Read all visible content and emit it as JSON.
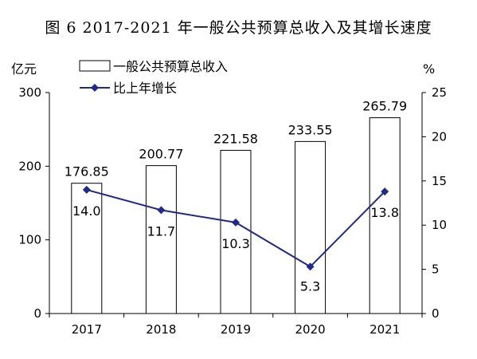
{
  "title": "图 6  2017-2021 年一般公共预算总收入及其增长速度",
  "chart_data": {
    "type": "bar",
    "categories": [
      "2017",
      "2018",
      "2019",
      "2020",
      "2021"
    ],
    "left_axis": {
      "unit": "亿元",
      "ylim": [
        0,
        300
      ],
      "ticks": [
        0,
        100,
        200,
        300
      ]
    },
    "right_axis": {
      "unit": "%",
      "ylim": [
        0,
        25
      ],
      "ticks": [
        0,
        5,
        10,
        15,
        20,
        25
      ]
    },
    "series": [
      {
        "name": "一般公共预算总收入",
        "type": "bar",
        "axis": "left",
        "values": [
          176.85,
          200.77,
          221.58,
          233.55,
          265.79
        ],
        "labels": [
          "176.85",
          "200.77",
          "221.58",
          "233.55",
          "265.79"
        ],
        "color": "#ffffff",
        "border": "#000000"
      },
      {
        "name": "比上年增长",
        "type": "line",
        "axis": "right",
        "values": [
          14.0,
          11.7,
          10.3,
          5.3,
          13.8
        ],
        "labels": [
          "14.0",
          "11.7",
          "10.3",
          "5.3",
          "13.8"
        ],
        "color": "#1f2a8a"
      }
    ],
    "legend_position": "top-left",
    "grid": false
  }
}
